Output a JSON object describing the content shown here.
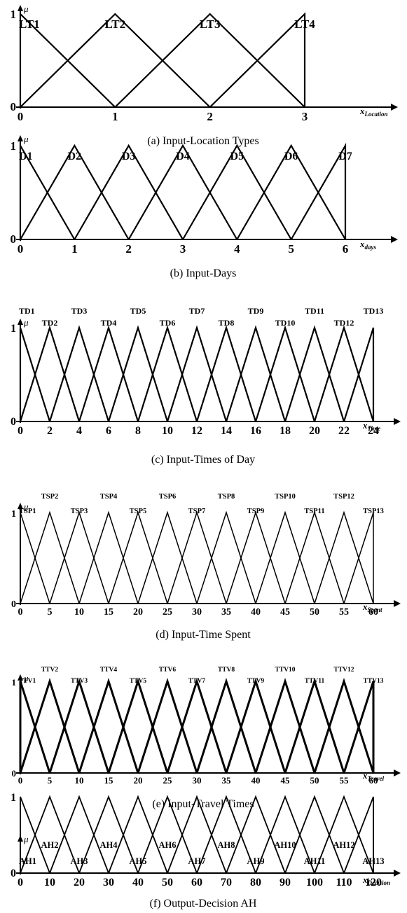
{
  "chart_data": [
    {
      "type": "line",
      "caption": "(a) Input-Location Types",
      "ylabel": "μ",
      "xlabel_main": "x",
      "xlabel_sub": "Location",
      "y_ticks": [
        "0",
        "1"
      ],
      "x_ticks": [
        "0",
        "1",
        "2",
        "3"
      ],
      "xlim": [
        0,
        3
      ],
      "ylim": [
        0,
        1
      ],
      "centers": [
        0,
        1,
        2,
        3
      ],
      "width": 1,
      "series_labels": [
        "LT1",
        "LT2",
        "LT3",
        "LT4"
      ],
      "stroke": "#000000"
    },
    {
      "type": "line",
      "caption": "(b) Input-Days",
      "ylabel": "μ",
      "xlabel_main": "x",
      "xlabel_sub": "days",
      "y_ticks": [
        "0",
        "1"
      ],
      "x_ticks": [
        "0",
        "1",
        "2",
        "3",
        "4",
        "5",
        "6"
      ],
      "xlim": [
        0,
        6
      ],
      "ylim": [
        0,
        1
      ],
      "centers": [
        0,
        1,
        2,
        3,
        4,
        5,
        6
      ],
      "width": 1,
      "series_labels": [
        "D1",
        "D2",
        "D3",
        "D4",
        "D5",
        "D6",
        "D7"
      ],
      "stroke": "#000000"
    },
    {
      "type": "line",
      "caption": "(c) Input-Times of Day",
      "ylabel": "μ",
      "xlabel_main": "x",
      "xlabel_sub": "Time",
      "y_ticks": [
        "0",
        "1"
      ],
      "x_ticks": [
        "0",
        "2",
        "4",
        "6",
        "8",
        "10",
        "12",
        "14",
        "16",
        "18",
        "20",
        "22",
        "24"
      ],
      "xlim": [
        0,
        24
      ],
      "ylim": [
        0,
        1
      ],
      "centers": [
        0,
        2,
        4,
        6,
        8,
        10,
        12,
        14,
        16,
        18,
        20,
        22,
        24
      ],
      "width": 2,
      "series_labels": [
        "TD1",
        "TD2",
        "TD3",
        "TD4",
        "TD5",
        "TD6",
        "TD7",
        "TD8",
        "TD9",
        "TD10",
        "TD11",
        "TD12",
        "TD13"
      ],
      "stroke": "#000000"
    },
    {
      "type": "line",
      "caption": "(d) Input-Time Spent",
      "ylabel": "μ",
      "xlabel_main": "x",
      "xlabel_sub": "Spent",
      "y_ticks": [
        "0",
        "1"
      ],
      "x_ticks": [
        "0",
        "5",
        "10",
        "15",
        "20",
        "25",
        "30",
        "35",
        "40",
        "45",
        "50",
        "55",
        "60"
      ],
      "xlim": [
        0,
        60
      ],
      "ylim": [
        0,
        1
      ],
      "centers": [
        0,
        5,
        10,
        15,
        20,
        25,
        30,
        35,
        40,
        45,
        50,
        55,
        60
      ],
      "width": 5,
      "series_labels": [
        "TSP1",
        "TSP2",
        "TSP3",
        "TSP4",
        "TSP5",
        "TSP6",
        "TSP7",
        "TSP8",
        "TSP9",
        "TSP10",
        "TSP11",
        "TSP12",
        "TSP13"
      ],
      "stroke": "#000000"
    },
    {
      "type": "line",
      "caption": "(e) Input-Travel Times",
      "ylabel": "μ",
      "xlabel_main": "x",
      "xlabel_sub": "Travel",
      "y_ticks": [
        "0",
        "1"
      ],
      "x_ticks": [
        "0",
        "5",
        "10",
        "15",
        "20",
        "25",
        "30",
        "35",
        "40",
        "45",
        "50",
        "55",
        "60"
      ],
      "xlim": [
        0,
        60
      ],
      "ylim": [
        0,
        1
      ],
      "centers": [
        0,
        5,
        10,
        15,
        20,
        25,
        30,
        35,
        40,
        45,
        50,
        55,
        60
      ],
      "width": 5,
      "series_labels": [
        "TTV1",
        "TTV2",
        "TTV3",
        "TTV4",
        "TTV5",
        "TTV6",
        "TTV7",
        "TTV8",
        "TTV9",
        "TTV10",
        "TTV11",
        "TTV12",
        "TTV13"
      ],
      "stroke": "#000000"
    },
    {
      "type": "line",
      "caption": "(f) Output-Decision AH",
      "ylabel": "μ",
      "xlabel_main": "x",
      "xlabel_sub": "Decision",
      "y_ticks": [
        "0",
        "1"
      ],
      "x_ticks": [
        "0",
        "10",
        "20",
        "30",
        "40",
        "50",
        "60",
        "70",
        "80",
        "90",
        "100",
        "110",
        "120"
      ],
      "xlim": [
        0,
        120
      ],
      "ylim": [
        0,
        1
      ],
      "centers": [
        0,
        10,
        20,
        30,
        40,
        50,
        60,
        70,
        80,
        90,
        100,
        110,
        120
      ],
      "width": 10,
      "series_labels": [
        "AH1",
        "AH2",
        "AH3",
        "AH4",
        "AH5",
        "AH6",
        "AH7",
        "AH8",
        "AH9",
        "AH10",
        "AH11",
        "AH12",
        "AH13"
      ],
      "stroke": "#000000"
    }
  ]
}
